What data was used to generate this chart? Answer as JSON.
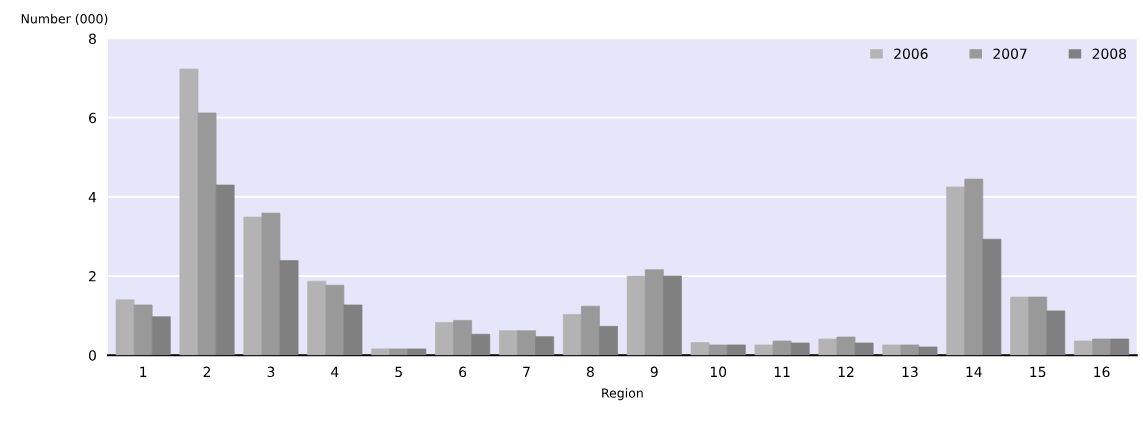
{
  "chart_data": {
    "type": "bar",
    "ylabel": "Number (000)",
    "xlabel": "Region",
    "categories": [
      "1",
      "2",
      "3",
      "4",
      "5",
      "6",
      "7",
      "8",
      "9",
      "10",
      "11",
      "12",
      "13",
      "14",
      "15",
      "16"
    ],
    "series": [
      {
        "name": "2006",
        "color": "#b3b3b3",
        "values": [
          1.4,
          7.23,
          3.49,
          1.87,
          0.16,
          0.83,
          0.62,
          1.03,
          2.0,
          0.32,
          0.26,
          0.41,
          0.26,
          4.25,
          1.47,
          0.36
        ]
      },
      {
        "name": "2007",
        "color": "#999999",
        "values": [
          1.27,
          6.12,
          3.59,
          1.77,
          0.16,
          0.88,
          0.62,
          1.24,
          2.16,
          0.26,
          0.36,
          0.46,
          0.26,
          4.45,
          1.47,
          0.41
        ]
      },
      {
        "name": "2008",
        "color": "#808080",
        "values": [
          0.97,
          4.3,
          2.39,
          1.27,
          0.16,
          0.53,
          0.47,
          0.73,
          2.0,
          0.26,
          0.31,
          0.31,
          0.21,
          2.93,
          1.12,
          0.41
        ]
      }
    ],
    "ylim": [
      0,
      8
    ],
    "yticks": [
      0,
      2,
      4,
      6,
      8
    ],
    "grid": "y",
    "legend": "top right"
  }
}
